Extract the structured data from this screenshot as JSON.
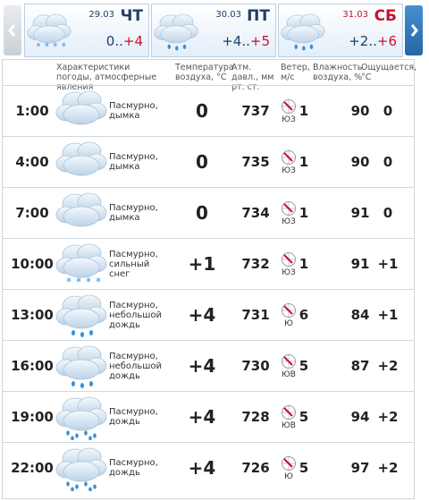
{
  "days": [
    {
      "date": "29.03",
      "day": "ЧТ",
      "low": "0..",
      "high": "+4"
    },
    {
      "date": "30.03",
      "day": "ПТ",
      "low": "+4..",
      "high": "+5"
    },
    {
      "date": "31.03",
      "day": "СБ",
      "low": "+2..",
      "high": "+6"
    }
  ],
  "headers": [
    "Характеристики погоды, атмосферные явления",
    "Температура воздуха, °С",
    "Атм. давл., мм рт. ст.",
    "Ветер, м/с",
    "Влажность воздуха, %",
    "Ощущается, °С"
  ],
  "rows": [
    {
      "time": "1:00",
      "desc": "Пасмурно, дымка",
      "temp": "0",
      "pressure": "737",
      "wind_dir": "ЮЗ",
      "wind": "1",
      "humidity": "90",
      "feels": "0"
    },
    {
      "time": "4:00",
      "desc": "Пасмурно, дымка",
      "temp": "0",
      "pressure": "735",
      "wind_dir": "ЮЗ",
      "wind": "1",
      "humidity": "90",
      "feels": "0"
    },
    {
      "time": "7:00",
      "desc": "Пасмурно, дымка",
      "temp": "0",
      "pressure": "734",
      "wind_dir": "ЮЗ",
      "wind": "1",
      "humidity": "91",
      "feels": "0"
    },
    {
      "time": "10:00",
      "desc": "Пасмурно, сильный снег",
      "temp": "+1",
      "pressure": "732",
      "wind_dir": "ЮЗ",
      "wind": "1",
      "humidity": "91",
      "feels": "+1"
    },
    {
      "time": "13:00",
      "desc": "Пасмурно, небольшой дождь",
      "temp": "+4",
      "pressure": "731",
      "wind_dir": "Ю",
      "wind": "6",
      "humidity": "84",
      "feels": "+1"
    },
    {
      "time": "16:00",
      "desc": "Пасмурно, небольшой дождь",
      "temp": "+4",
      "pressure": "730",
      "wind_dir": "ЮВ",
      "wind": "5",
      "humidity": "87",
      "feels": "+2"
    },
    {
      "time": "19:00",
      "desc": "Пасмурно, дождь",
      "temp": "+4",
      "pressure": "728",
      "wind_dir": "ЮВ",
      "wind": "5",
      "humidity": "94",
      "feels": "+2"
    },
    {
      "time": "22:00",
      "desc": "Пасмурно, дождь",
      "temp": "+4",
      "pressure": "726",
      "wind_dir": "Ю",
      "wind": "5",
      "humidity": "97",
      "feels": "+2"
    }
  ]
}
